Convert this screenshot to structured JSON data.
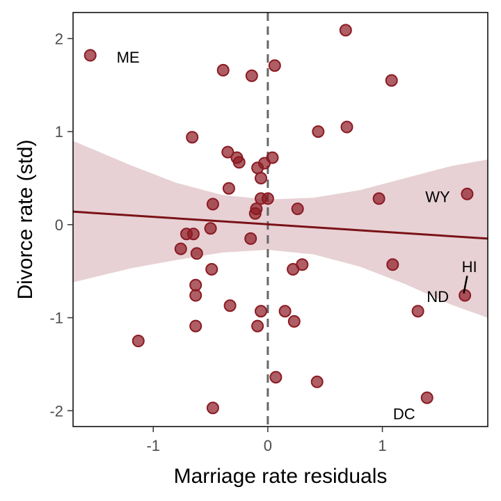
{
  "chart_data": {
    "type": "scatter",
    "title": "",
    "xlabel": "Marriage rate residuals",
    "ylabel": "Divorce rate (std)",
    "xlim": [
      -1.7,
      1.92
    ],
    "ylim": [
      -2.17,
      2.28
    ],
    "x_ticks": [
      -1,
      0,
      1
    ],
    "x_tick_labels": [
      "-1",
      "0",
      "1"
    ],
    "y_ticks": [
      -2,
      -1,
      0,
      1,
      2
    ],
    "y_tick_labels": [
      "-2",
      "-1",
      "0",
      "1",
      "2"
    ],
    "grid": false,
    "reference_line": {
      "x": 0,
      "style": "dashed",
      "color": "#666666"
    },
    "fit_line": {
      "x": [
        -1.7,
        1.92
      ],
      "y": [
        0.14,
        -0.15
      ],
      "color": "#7a1216"
    },
    "confidence_band": {
      "x": [
        -1.7,
        -1.2,
        -0.8,
        -0.4,
        0,
        0.4,
        0.8,
        1.2,
        1.6,
        1.92
      ],
      "upper": [
        0.9,
        0.64,
        0.45,
        0.32,
        0.27,
        0.29,
        0.37,
        0.5,
        0.63,
        0.7
      ],
      "lower": [
        -0.62,
        -0.47,
        -0.38,
        -0.3,
        -0.27,
        -0.32,
        -0.45,
        -0.64,
        -0.86,
        -1.0
      ],
      "color": "#c99aa1"
    },
    "point_color": "#8b1a22",
    "series": [
      {
        "points": [
          {
            "x": -1.55,
            "y": 1.82,
            "label": "ME"
          },
          {
            "x": 0.68,
            "y": 2.09
          },
          {
            "x": -0.39,
            "y": 1.66
          },
          {
            "x": -0.14,
            "y": 1.6
          },
          {
            "x": 0.06,
            "y": 1.71
          },
          {
            "x": 1.08,
            "y": 1.55
          },
          {
            "x": 0.44,
            "y": 1.0
          },
          {
            "x": 0.69,
            "y": 1.05
          },
          {
            "x": -0.66,
            "y": 0.94
          },
          {
            "x": -0.35,
            "y": 0.78
          },
          {
            "x": -0.27,
            "y": 0.72
          },
          {
            "x": -0.25,
            "y": 0.67
          },
          {
            "x": -0.09,
            "y": 0.61
          },
          {
            "x": -0.03,
            "y": 0.66
          },
          {
            "x": 0.04,
            "y": 0.72
          },
          {
            "x": -0.06,
            "y": 0.5
          },
          {
            "x": -0.34,
            "y": 0.39
          },
          {
            "x": 1.74,
            "y": 0.33,
            "label": "WY"
          },
          {
            "x": 0.97,
            "y": 0.28
          },
          {
            "x": -0.06,
            "y": 0.28
          },
          {
            "x": 0.0,
            "y": 0.28
          },
          {
            "x": -0.48,
            "y": 0.22
          },
          {
            "x": -0.1,
            "y": 0.17
          },
          {
            "x": -0.11,
            "y": 0.12
          },
          {
            "x": 0.26,
            "y": 0.17
          },
          {
            "x": -0.5,
            "y": -0.04
          },
          {
            "x": -0.71,
            "y": -0.1
          },
          {
            "x": -0.65,
            "y": -0.1
          },
          {
            "x": -0.76,
            "y": -0.26
          },
          {
            "x": -0.62,
            "y": -0.31
          },
          {
            "x": -0.15,
            "y": -0.15
          },
          {
            "x": 1.09,
            "y": -0.43
          },
          {
            "x": 0.3,
            "y": -0.43
          },
          {
            "x": 0.22,
            "y": -0.48
          },
          {
            "x": -0.49,
            "y": -0.48
          },
          {
            "x": -0.63,
            "y": -0.65
          },
          {
            "x": -0.63,
            "y": -0.76
          },
          {
            "x": 1.72,
            "y": -0.76,
            "label": "HI"
          },
          {
            "x": 1.31,
            "y": -0.93,
            "label": "ND"
          },
          {
            "x": -0.33,
            "y": -0.87
          },
          {
            "x": -0.06,
            "y": -0.93
          },
          {
            "x": 0.15,
            "y": -0.93
          },
          {
            "x": 0.23,
            "y": -1.04
          },
          {
            "x": -0.63,
            "y": -1.09
          },
          {
            "x": -0.09,
            "y": -1.09
          },
          {
            "x": -1.13,
            "y": -1.25
          },
          {
            "x": 0.07,
            "y": -1.64
          },
          {
            "x": 0.43,
            "y": -1.69
          },
          {
            "x": 1.39,
            "y": -1.86,
            "label": "DC"
          },
          {
            "x": -0.48,
            "y": -1.97
          }
        ]
      }
    ],
    "annotations": [
      {
        "text": "ME",
        "x": -1.32,
        "y": 1.8,
        "anchor": "start"
      },
      {
        "text": "WY",
        "x": 1.59,
        "y": 0.3,
        "anchor": "end"
      },
      {
        "text": "HI",
        "x": 1.76,
        "y": -0.45,
        "anchor": "middle"
      },
      {
        "text": "ND",
        "x": 1.58,
        "y": -0.77,
        "anchor": "end"
      },
      {
        "text": "DC",
        "x": 1.19,
        "y": -2.03,
        "anchor": "middle"
      }
    ],
    "connectors": [
      {
        "from": [
          1.74,
          -0.55
        ],
        "to": [
          1.71,
          -0.74
        ]
      }
    ]
  }
}
